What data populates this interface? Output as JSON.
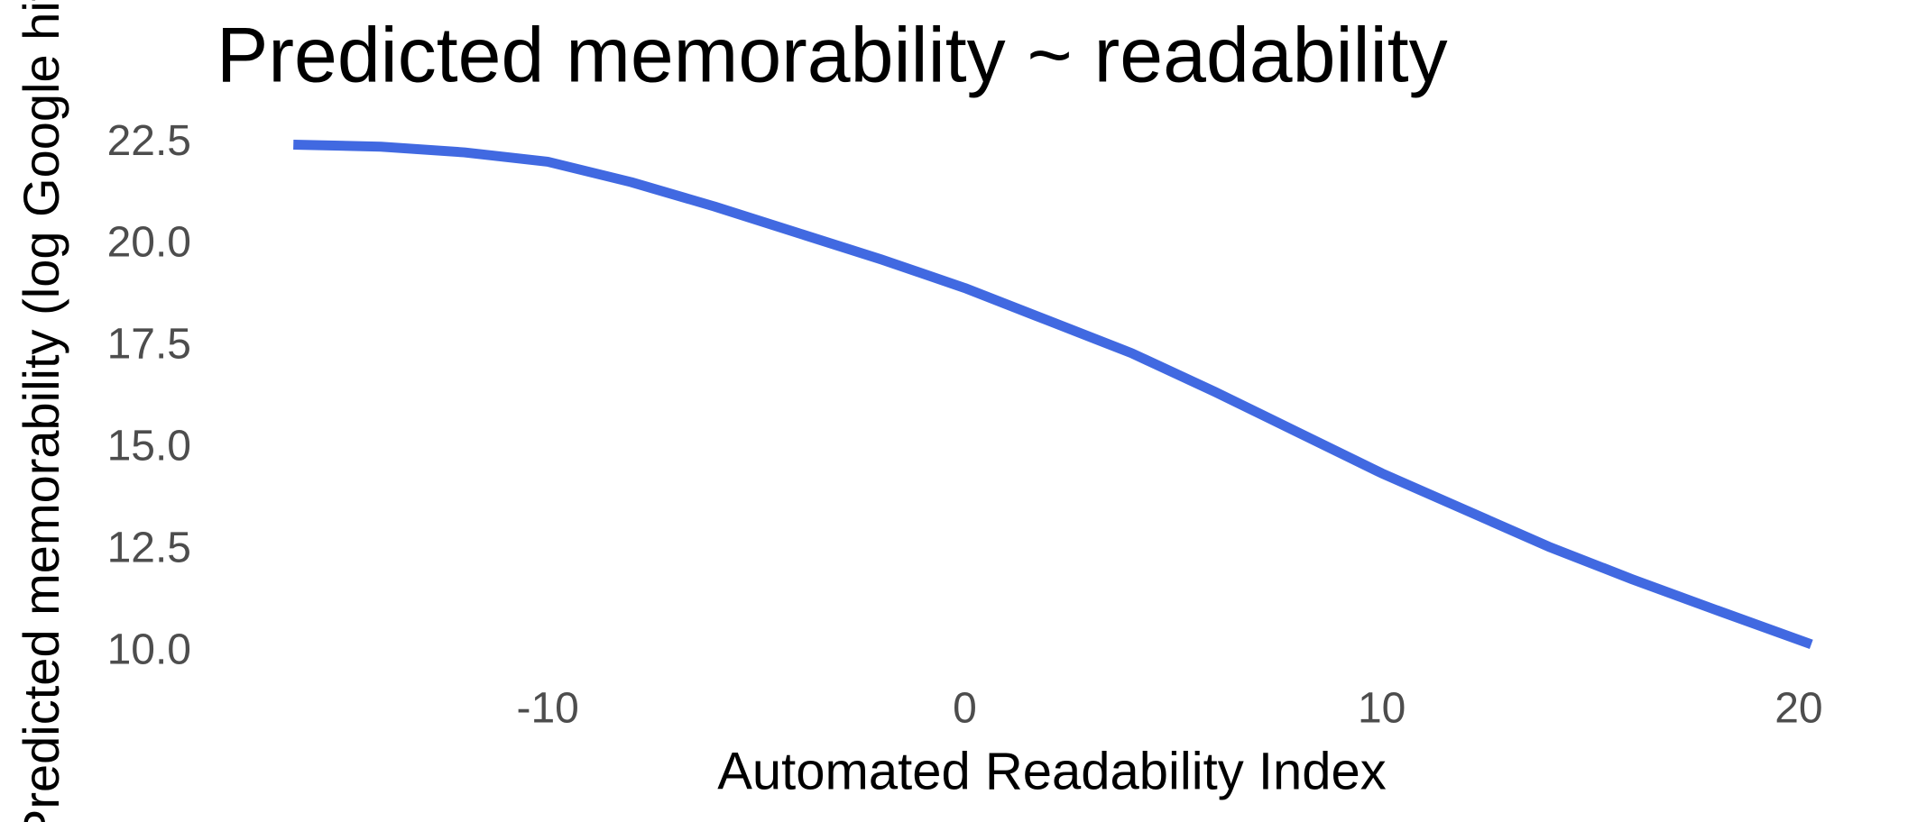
{
  "chart_data": {
    "type": "line",
    "title": "Predicted memorability ~ readability",
    "x_label": "Automated Readability Index",
    "y_label": "Predicted memorability (log Google hits)",
    "x": [
      -16.1,
      -14,
      -12,
      -10,
      -8,
      -6,
      -4,
      -2,
      0,
      2,
      4,
      6,
      8,
      10,
      12,
      14,
      16,
      18,
      20.3
    ],
    "series": [
      {
        "name": "Predicted memorability",
        "color": "#4169e1",
        "values": [
          22.47,
          22.42,
          22.28,
          22.05,
          21.55,
          20.95,
          20.3,
          19.65,
          18.95,
          18.15,
          17.35,
          16.4,
          15.4,
          14.4,
          13.5,
          12.6,
          11.8,
          11.05,
          10.2
        ]
      }
    ],
    "xlim": [
      -17.9,
      22.1
    ],
    "xticks": [
      -10,
      0,
      10,
      20
    ],
    "ylim": [
      9.6,
      23.1
    ],
    "yticks": [
      {
        "value": 10,
        "label": "10.0"
      },
      {
        "value": 12.5,
        "label": "12.5"
      },
      {
        "value": 15,
        "label": "15.0"
      },
      {
        "value": 17.5,
        "label": "17.5"
      },
      {
        "value": 20,
        "label": "20.0"
      },
      {
        "value": 22.5,
        "label": "22.5"
      }
    ],
    "grid": false
  }
}
